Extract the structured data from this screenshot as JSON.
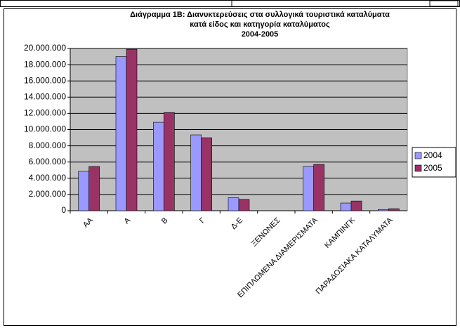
{
  "chart_data": {
    "type": "bar",
    "title": [
      "Διάγραμμα 1Β: Διανυκτερεύσεις στα συλλογικά τουριστικά καταλύματα",
      "κατά είδος και κατηγορία καταλύματος"
    ],
    "subtitle": "2004-2005",
    "categories": [
      "ΑΑ",
      "Α",
      "Β",
      "Γ",
      "Δ-Ε",
      "ΞΕΝΩΝΕΣ",
      "ΕΠΙΠΛΩΜΕΝΑ ΔΙΑΜΕΡΙΣΜΑΤΑ",
      "ΚΑΜΠΙΝΓΚ",
      "ΠΑΡΑΔΟΣΙΑΚΑ ΚΑΤΑΛΥΜΑΤΑ"
    ],
    "series": [
      {
        "name": "2004",
        "color": "#9999ff",
        "values": [
          4850000,
          19000000,
          10900000,
          9350000,
          1600000,
          0,
          5450000,
          950000,
          150000
        ]
      },
      {
        "name": "2005",
        "color": "#993366",
        "values": [
          5450000,
          19900000,
          12100000,
          9000000,
          1400000,
          0,
          5700000,
          1200000,
          250000
        ]
      }
    ],
    "ylim": [
      0,
      20000000
    ],
    "yticks": [
      {
        "value": 0,
        "label": "0"
      },
      {
        "value": 2000000,
        "label": "2.000.000"
      },
      {
        "value": 4000000,
        "label": "4.000.000"
      },
      {
        "value": 6000000,
        "label": "6.000.000"
      },
      {
        "value": 8000000,
        "label": "8.000.000"
      },
      {
        "value": 10000000,
        "label": "10.000.000"
      },
      {
        "value": 12000000,
        "label": "12.000.000"
      },
      {
        "value": 14000000,
        "label": "14.000.000"
      },
      {
        "value": 16000000,
        "label": "16.000.000"
      },
      {
        "value": 18000000,
        "label": "18.000.000"
      },
      {
        "value": 20000000,
        "label": "20.000.000"
      }
    ],
    "grid": true,
    "legend": "right",
    "plot_background": "#c0c0c0"
  }
}
